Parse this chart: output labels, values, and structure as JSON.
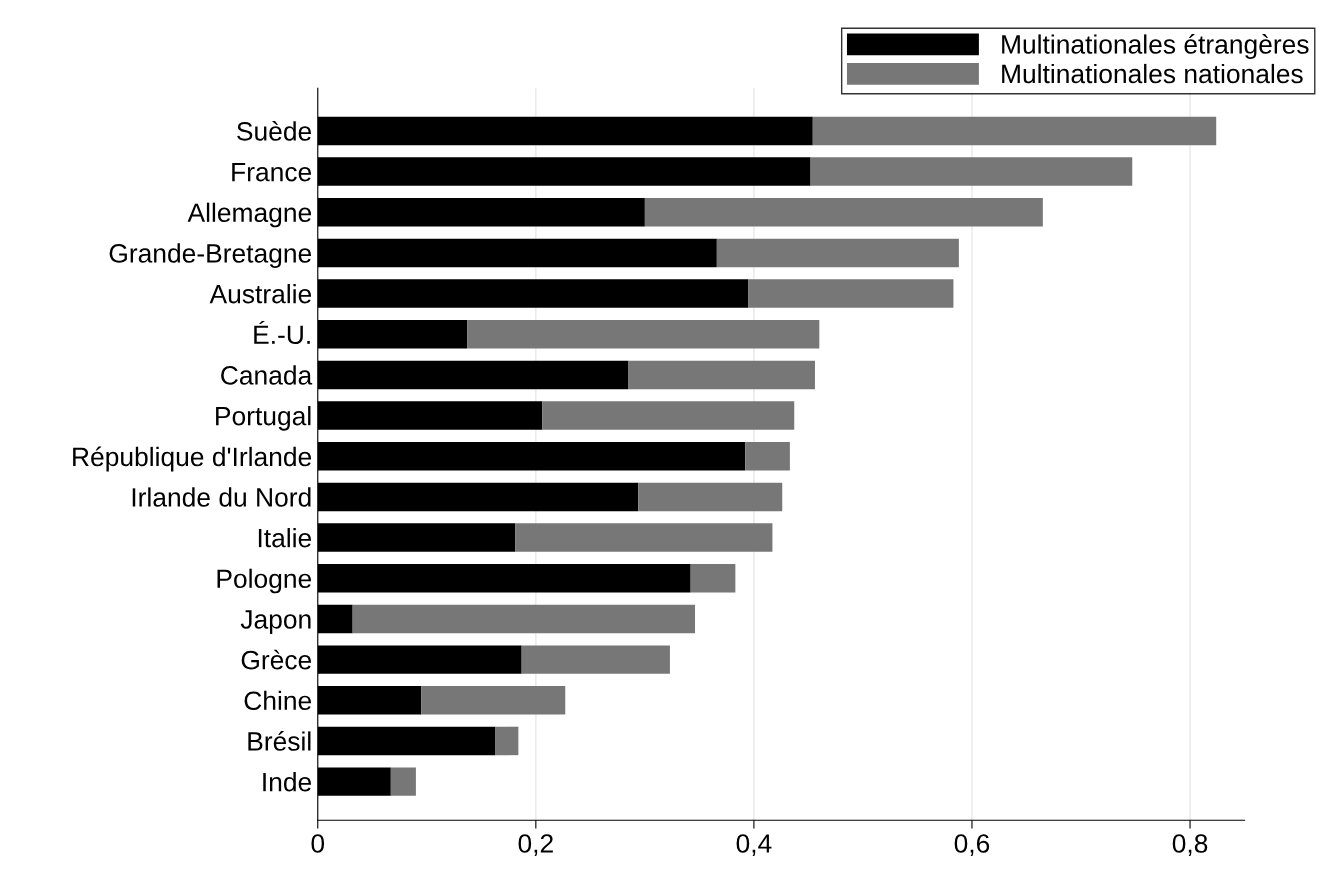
{
  "chart_data": {
    "type": "bar",
    "orientation": "horizontal",
    "stacked": true,
    "categories": [
      "Suède",
      "France",
      "Allemagne",
      "Grande-Bretagne",
      "Australie",
      "É.-U.",
      "Canada",
      "Portugal",
      "République d'Irlande",
      "Irlande du Nord",
      "Italie",
      "Pologne",
      "Japon",
      "Grèce",
      "Chine",
      "Brésil",
      "Inde"
    ],
    "series": [
      {
        "name": "Multinationales étrangères",
        "color": "#000000",
        "values": [
          0.454,
          0.452,
          0.3,
          0.366,
          0.395,
          0.137,
          0.285,
          0.206,
          0.392,
          0.294,
          0.181,
          0.342,
          0.032,
          0.187,
          0.095,
          0.163,
          0.067
        ]
      },
      {
        "name": "Multinationales nationales",
        "color": "#777777",
        "values": [
          0.37,
          0.295,
          0.365,
          0.222,
          0.188,
          0.323,
          0.171,
          0.231,
          0.041,
          0.132,
          0.236,
          0.041,
          0.314,
          0.136,
          0.132,
          0.021,
          0.023
        ]
      }
    ],
    "xlim": [
      0,
      0.85
    ],
    "xticks": [
      0,
      {
        "value": 0.2,
        "label": "0,2"
      },
      {
        "value": 0.4,
        "label": "0,4"
      },
      {
        "value": 0.6,
        "label": "0,6"
      },
      {
        "value": 0.8,
        "label": "0,8"
      }
    ],
    "grid": "x",
    "legend": "top right"
  }
}
